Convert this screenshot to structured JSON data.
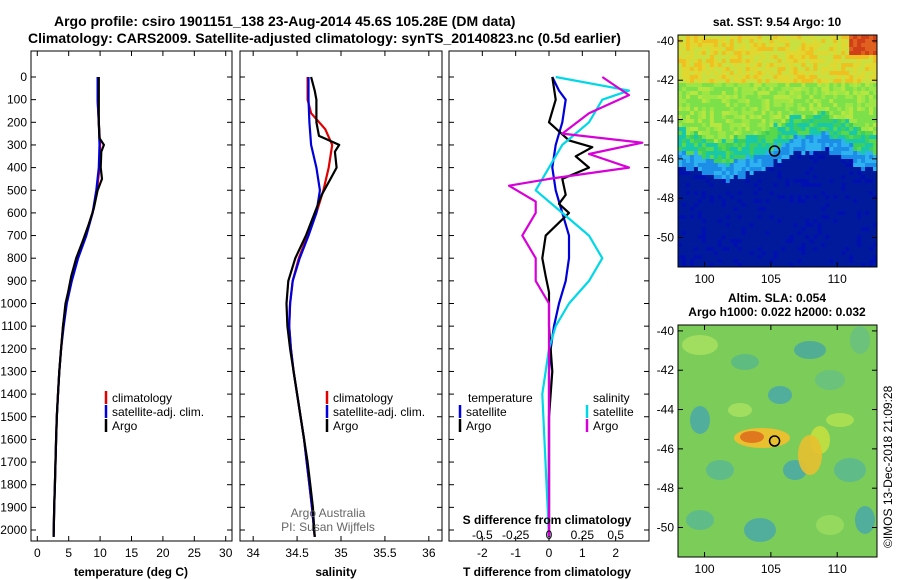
{
  "header": {
    "title_line1": "Argo profile: csiro 1901151_138 23-Aug-2014 45.6S 105.28E (DM data)",
    "title_line2": "Climatology: CARS2009. Satellite-adjusted climatology: synTS_20140823.nc (0.5d earlier)"
  },
  "colors": {
    "climatology": "#e00000",
    "satellite": "#0000dd",
    "argo": "#000000",
    "sat_salinity": "#00d8e8",
    "argo_salinity": "#d800d8"
  },
  "shared": {
    "depth_ticks": [
      "0",
      "100",
      "200",
      "300",
      "400",
      "500",
      "600",
      "700",
      "800",
      "900",
      "1000",
      "1100",
      "1200",
      "1300",
      "1400",
      "1500",
      "1600",
      "1700",
      "1800",
      "1900",
      "2000"
    ]
  },
  "chart_data": [
    {
      "type": "line",
      "id": "temperature",
      "xlabel": "temperature (deg C)",
      "xlim": [
        -1,
        31
      ],
      "ylim": [
        2050,
        0
      ],
      "xticks": [
        0,
        5,
        10,
        15,
        20,
        25,
        30
      ],
      "xtick_labels": [
        "0",
        "5",
        "10",
        "15",
        "20",
        "25",
        "30"
      ],
      "legend": [
        "climatology",
        "satellite-adj. clim.",
        "Argo"
      ],
      "series": [
        {
          "name": "climatology",
          "color": "#e00000",
          "points": [
            [
              9.7,
              0
            ],
            [
              9.6,
              100
            ],
            [
              9.8,
              200
            ],
            [
              10.0,
              300
            ],
            [
              9.9,
              400
            ],
            [
              9.5,
              500
            ],
            [
              8.8,
              600
            ],
            [
              7.6,
              700
            ],
            [
              6.3,
              800
            ],
            [
              5.3,
              900
            ],
            [
              4.6,
              1000
            ],
            [
              4.1,
              1100
            ],
            [
              3.8,
              1200
            ],
            [
              3.5,
              1300
            ],
            [
              3.3,
              1400
            ],
            [
              3.1,
              1500
            ],
            [
              3.0,
              1600
            ],
            [
              2.9,
              1700
            ],
            [
              2.8,
              1800
            ],
            [
              2.7,
              1900
            ],
            [
              2.6,
              2030
            ]
          ]
        },
        {
          "name": "satellite-adj. clim.",
          "color": "#0000dd",
          "points": [
            [
              9.6,
              0
            ],
            [
              9.6,
              100
            ],
            [
              9.8,
              200
            ],
            [
              9.9,
              300
            ],
            [
              9.8,
              400
            ],
            [
              9.4,
              500
            ],
            [
              8.8,
              600
            ],
            [
              7.8,
              700
            ],
            [
              6.5,
              800
            ],
            [
              5.5,
              900
            ],
            [
              4.7,
              1000
            ],
            [
              4.2,
              1100
            ],
            [
              3.8,
              1200
            ],
            [
              3.5,
              1300
            ],
            [
              3.3,
              1400
            ],
            [
              3.1,
              1500
            ],
            [
              3.0,
              1600
            ],
            [
              2.9,
              1700
            ],
            [
              2.8,
              1800
            ],
            [
              2.7,
              1900
            ],
            [
              2.6,
              2030
            ]
          ]
        },
        {
          "name": "Argo",
          "color": "#000000",
          "points": [
            [
              9.8,
              0
            ],
            [
              9.8,
              100
            ],
            [
              9.8,
              200
            ],
            [
              9.9,
              270
            ],
            [
              10.6,
              300
            ],
            [
              10.2,
              330
            ],
            [
              10.1,
              400
            ],
            [
              10.3,
              450
            ],
            [
              9.6,
              500
            ],
            [
              9.0,
              580
            ],
            [
              8.2,
              650
            ],
            [
              7.3,
              720
            ],
            [
              6.2,
              800
            ],
            [
              5.4,
              880
            ],
            [
              4.9,
              950
            ],
            [
              4.5,
              1000
            ],
            [
              4.1,
              1100
            ],
            [
              3.8,
              1200
            ],
            [
              3.5,
              1300
            ],
            [
              3.3,
              1400
            ],
            [
              3.1,
              1500
            ],
            [
              3.0,
              1600
            ],
            [
              2.9,
              1700
            ],
            [
              2.8,
              1800
            ],
            [
              2.7,
              1900
            ],
            [
              2.6,
              2030
            ]
          ]
        }
      ]
    },
    {
      "type": "line",
      "id": "salinity",
      "xlabel": "salinity",
      "xlim": [
        33.85,
        36.15
      ],
      "ylim": [
        2050,
        0
      ],
      "xticks": [
        34,
        34.5,
        35,
        35.5,
        36
      ],
      "xtick_labels": [
        "34",
        "34.5",
        "35",
        "35.5",
        "36"
      ],
      "legend": [
        "climatology",
        "satellite-adj. clim.",
        "Argo"
      ],
      "credit_line1": "Argo Australia",
      "credit_line2": "PI: Susan Wijffels",
      "series": [
        {
          "name": "climatology",
          "color": "#e00000",
          "points": [
            [
              34.62,
              0
            ],
            [
              34.62,
              100
            ],
            [
              34.66,
              160
            ],
            [
              34.82,
              230
            ],
            [
              34.9,
              300
            ],
            [
              34.86,
              400
            ],
            [
              34.8,
              500
            ],
            [
              34.72,
              600
            ],
            [
              34.62,
              700
            ],
            [
              34.52,
              800
            ],
            [
              34.45,
              900
            ],
            [
              34.42,
              1000
            ],
            [
              34.41,
              1100
            ],
            [
              34.43,
              1200
            ],
            [
              34.46,
              1300
            ],
            [
              34.5,
              1400
            ],
            [
              34.54,
              1500
            ],
            [
              34.58,
              1600
            ],
            [
              34.61,
              1700
            ],
            [
              34.64,
              1800
            ],
            [
              34.67,
              1900
            ],
            [
              34.7,
              2030
            ]
          ]
        },
        {
          "name": "satellite-adj. clim.",
          "color": "#0000dd",
          "points": [
            [
              34.63,
              0
            ],
            [
              34.63,
              100
            ],
            [
              34.64,
              200
            ],
            [
              34.66,
              300
            ],
            [
              34.72,
              400
            ],
            [
              34.76,
              500
            ],
            [
              34.72,
              600
            ],
            [
              34.63,
              700
            ],
            [
              34.53,
              800
            ],
            [
              34.45,
              900
            ],
            [
              34.42,
              1000
            ],
            [
              34.41,
              1100
            ],
            [
              34.43,
              1200
            ],
            [
              34.46,
              1300
            ],
            [
              34.5,
              1400
            ],
            [
              34.54,
              1500
            ],
            [
              34.58,
              1600
            ],
            [
              34.61,
              1700
            ],
            [
              34.64,
              1800
            ],
            [
              34.67,
              1900
            ],
            [
              34.7,
              2030
            ]
          ]
        },
        {
          "name": "Argo",
          "color": "#000000",
          "points": [
            [
              34.66,
              0
            ],
            [
              34.7,
              60
            ],
            [
              34.72,
              100
            ],
            [
              34.72,
              200
            ],
            [
              34.75,
              260
            ],
            [
              34.98,
              300
            ],
            [
              34.93,
              330
            ],
            [
              34.95,
              400
            ],
            [
              34.88,
              450
            ],
            [
              34.78,
              520
            ],
            [
              34.7,
              600
            ],
            [
              34.6,
              700
            ],
            [
              34.48,
              800
            ],
            [
              34.4,
              900
            ],
            [
              34.38,
              1000
            ],
            [
              34.39,
              1100
            ],
            [
              34.42,
              1200
            ],
            [
              34.46,
              1300
            ],
            [
              34.5,
              1400
            ],
            [
              34.54,
              1500
            ],
            [
              34.58,
              1600
            ],
            [
              34.62,
              1700
            ],
            [
              34.65,
              1800
            ],
            [
              34.68,
              1900
            ],
            [
              34.7,
              2030
            ]
          ]
        }
      ]
    },
    {
      "type": "line",
      "id": "difference",
      "xlabel": "T difference from climatology",
      "xlabel_top": "S difference from climatology",
      "xlim": [
        -3,
        3
      ],
      "ylim": [
        2050,
        0
      ],
      "xticks": [
        -2,
        -1,
        0,
        1,
        2
      ],
      "xtick_labels": [
        "-2",
        "-1",
        "0",
        "1",
        "2"
      ],
      "s_axis_ticks": [
        -0.5,
        -0.25,
        0,
        0.25,
        0.5
      ],
      "s_axis_labels": [
        "-0.5",
        "-0.25",
        "0",
        "0.25",
        "0.5"
      ],
      "legend_temperature_title": "temperature",
      "legend_salinity_title": "salinity",
      "legend": [
        "satellite",
        "Argo"
      ],
      "series": [
        {
          "name": "temperature satellite",
          "color": "#0000dd",
          "points": [
            [
              0.1,
              0
            ],
            [
              0.3,
              60
            ],
            [
              0.5,
              100
            ],
            [
              0.4,
              200
            ],
            [
              0.2,
              300
            ],
            [
              0.1,
              400
            ],
            [
              0.2,
              500
            ],
            [
              0.4,
              600
            ],
            [
              0.6,
              700
            ],
            [
              0.6,
              800
            ],
            [
              0.5,
              900
            ],
            [
              0.3,
              1000
            ],
            [
              0.15,
              1100
            ],
            [
              0.05,
              1200
            ],
            [
              0.0,
              1300
            ],
            [
              0.0,
              2030
            ]
          ]
        },
        {
          "name": "temperature Argo",
          "color": "#000000",
          "points": [
            [
              0.1,
              0
            ],
            [
              0.2,
              100
            ],
            [
              0.0,
              200
            ],
            [
              0.6,
              280
            ],
            [
              1.3,
              310
            ],
            [
              0.8,
              350
            ],
            [
              1.2,
              400
            ],
            [
              0.4,
              450
            ],
            [
              0.5,
              520
            ],
            [
              0.3,
              560
            ],
            [
              0.6,
              600
            ],
            [
              -0.1,
              700
            ],
            [
              -0.2,
              800
            ],
            [
              -0.1,
              880
            ],
            [
              0.0,
              950
            ],
            [
              0.0,
              1100
            ],
            [
              0.1,
              1300
            ],
            [
              0.0,
              1500
            ],
            [
              0.0,
              2030
            ]
          ]
        },
        {
          "name": "salinity satellite",
          "color": "#00d8e8",
          "points": [
            [
              0.05,
              0
            ],
            [
              0.6,
              60
            ],
            [
              0.4,
              100
            ],
            [
              0.3,
              200
            ],
            [
              0.1,
              300
            ],
            [
              0.0,
              400
            ],
            [
              -0.1,
              500
            ],
            [
              0.1,
              600
            ],
            [
              0.3,
              700
            ],
            [
              0.4,
              800
            ],
            [
              0.3,
              900
            ],
            [
              0.15,
              1000
            ],
            [
              0.05,
              1100
            ],
            [
              0.0,
              1200
            ],
            [
              -0.05,
              1400
            ],
            [
              0.0,
              2030
            ]
          ]
        },
        {
          "name": "salinity Argo",
          "color": "#d800d8",
          "points": [
            [
              0.4,
              0
            ],
            [
              0.6,
              80
            ],
            [
              0.3,
              160
            ],
            [
              0.1,
              250
            ],
            [
              0.7,
              290
            ],
            [
              0.3,
              340
            ],
            [
              0.6,
              400
            ],
            [
              0.0,
              450
            ],
            [
              -0.3,
              480
            ],
            [
              -0.1,
              550
            ],
            [
              -0.1,
              600
            ],
            [
              -0.2,
              700
            ],
            [
              -0.1,
              800
            ],
            [
              -0.1,
              900
            ],
            [
              0.0,
              1000
            ],
            [
              0.0,
              2030
            ]
          ]
        }
      ]
    },
    {
      "type": "heatmap",
      "id": "sst_map",
      "title": "sat. SST: 9.54 Argo: 10",
      "xlim": [
        98,
        113
      ],
      "ylim": [
        -51.5,
        -39.7
      ],
      "xticks": [
        100,
        105,
        110
      ],
      "xtick_labels": [
        "100",
        "105",
        "110"
      ],
      "yticks": [
        -40,
        -42,
        -44,
        -46,
        -48,
        -50
      ],
      "ytick_labels": [
        "-40",
        "-42",
        "-44",
        "-46",
        "-48",
        "-50"
      ],
      "float_position": [
        105.28,
        -45.6
      ]
    },
    {
      "type": "heatmap",
      "id": "sla_map",
      "title": "Altim. SLA: 0.054",
      "subtitle": "Argo h1000: 0.022 h2000: 0.032",
      "xlim": [
        98,
        113
      ],
      "ylim": [
        -51.5,
        -39.7
      ],
      "xticks": [
        100,
        105,
        110
      ],
      "xtick_labels": [
        "100",
        "105",
        "110"
      ],
      "yticks": [
        -40,
        -42,
        -44,
        -46,
        -48,
        -50
      ],
      "ytick_labels": [
        "-40",
        "-42",
        "-44",
        "-46",
        "-48",
        "-50"
      ],
      "float_position": [
        105.28,
        -45.6
      ]
    }
  ],
  "footer": {
    "credit_vertical": "©IMOS 13-Dec-2018 21:09:28"
  }
}
